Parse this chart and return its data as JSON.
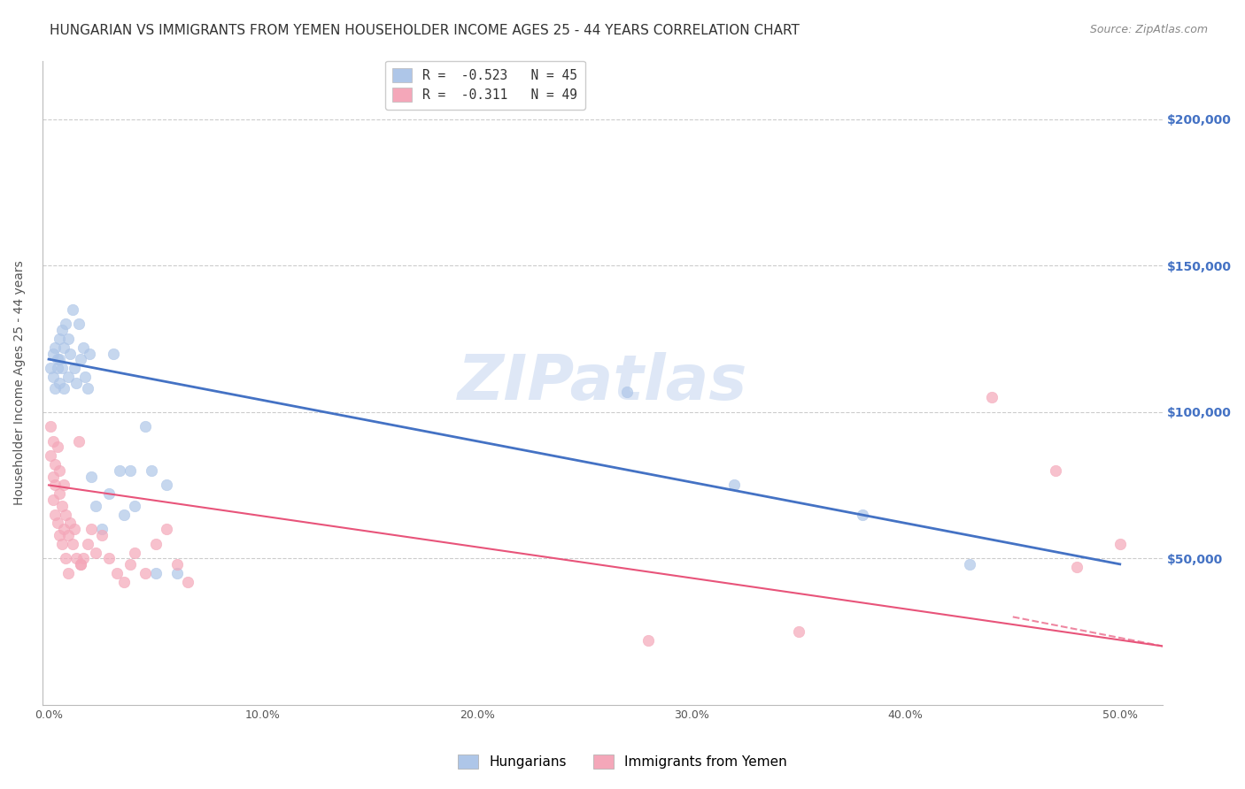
{
  "title": "HUNGARIAN VS IMMIGRANTS FROM YEMEN HOUSEHOLDER INCOME AGES 25 - 44 YEARS CORRELATION CHART",
  "source": "Source: ZipAtlas.com",
  "ylabel": "Householder Income Ages 25 - 44 years",
  "xlabel_ticks": [
    "0.0%",
    "10.0%",
    "20.0%",
    "30.0%",
    "40.0%",
    "50.0%"
  ],
  "xlabel_vals": [
    0.0,
    0.1,
    0.2,
    0.3,
    0.4,
    0.5
  ],
  "ytick_labels": [
    "$50,000",
    "$100,000",
    "$150,000",
    "$200,000"
  ],
  "ytick_vals": [
    50000,
    100000,
    150000,
    200000
  ],
  "ylim": [
    0,
    220000
  ],
  "xlim": [
    -0.003,
    0.52
  ],
  "legend_r_entries": [
    {
      "label": "R =  -0.523   N = 45",
      "color": "#aec6e8"
    },
    {
      "label": "R =  -0.311   N = 49",
      "color": "#f4a7b9"
    }
  ],
  "legend_labels": [
    "Hungarians",
    "Immigrants from Yemen"
  ],
  "blue_color": "#4472c4",
  "pink_color": "#e8547a",
  "blue_scatter_color": "#aec6e8",
  "pink_scatter_color": "#f4a7b9",
  "watermark": "ZIPatlas",
  "watermark_color": "#c8d8f0",
  "blue_scatter_x": [
    0.001,
    0.002,
    0.002,
    0.003,
    0.003,
    0.004,
    0.004,
    0.005,
    0.005,
    0.005,
    0.006,
    0.006,
    0.007,
    0.007,
    0.008,
    0.009,
    0.009,
    0.01,
    0.011,
    0.012,
    0.013,
    0.014,
    0.015,
    0.016,
    0.017,
    0.018,
    0.019,
    0.02,
    0.022,
    0.025,
    0.028,
    0.03,
    0.033,
    0.035,
    0.038,
    0.04,
    0.045,
    0.048,
    0.05,
    0.055,
    0.06,
    0.27,
    0.32,
    0.38,
    0.43
  ],
  "blue_scatter_y": [
    115000,
    112000,
    120000,
    108000,
    122000,
    115000,
    118000,
    125000,
    110000,
    118000,
    128000,
    115000,
    122000,
    108000,
    130000,
    125000,
    112000,
    120000,
    135000,
    115000,
    110000,
    130000,
    118000,
    122000,
    112000,
    108000,
    120000,
    78000,
    68000,
    60000,
    72000,
    120000,
    80000,
    65000,
    80000,
    68000,
    95000,
    80000,
    45000,
    75000,
    45000,
    107000,
    75000,
    65000,
    48000
  ],
  "blue_trend_x": [
    0.0,
    0.5
  ],
  "blue_trend_y": [
    118000,
    48000
  ],
  "pink_scatter_x": [
    0.001,
    0.001,
    0.002,
    0.002,
    0.002,
    0.003,
    0.003,
    0.003,
    0.004,
    0.004,
    0.005,
    0.005,
    0.005,
    0.006,
    0.006,
    0.007,
    0.007,
    0.008,
    0.008,
    0.009,
    0.009,
    0.01,
    0.011,
    0.012,
    0.013,
    0.014,
    0.015,
    0.016,
    0.018,
    0.02,
    0.022,
    0.025,
    0.028,
    0.032,
    0.035,
    0.038,
    0.04,
    0.045,
    0.05,
    0.055,
    0.06,
    0.065,
    0.28,
    0.35,
    0.44,
    0.47,
    0.48,
    0.5,
    0.015
  ],
  "pink_scatter_y": [
    95000,
    85000,
    90000,
    78000,
    70000,
    82000,
    75000,
    65000,
    88000,
    62000,
    80000,
    72000,
    58000,
    68000,
    55000,
    75000,
    60000,
    65000,
    50000,
    58000,
    45000,
    62000,
    55000,
    60000,
    50000,
    90000,
    48000,
    50000,
    55000,
    60000,
    52000,
    58000,
    50000,
    45000,
    42000,
    48000,
    52000,
    45000,
    55000,
    60000,
    48000,
    42000,
    22000,
    25000,
    105000,
    80000,
    47000,
    55000,
    48000
  ],
  "pink_trend_x": [
    0.0,
    0.52
  ],
  "pink_trend_y": [
    75000,
    20000
  ],
  "blue_scatter_size": 80,
  "pink_scatter_size": 80,
  "title_fontsize": 11,
  "axis_fontsize": 10,
  "tick_fontsize": 9
}
